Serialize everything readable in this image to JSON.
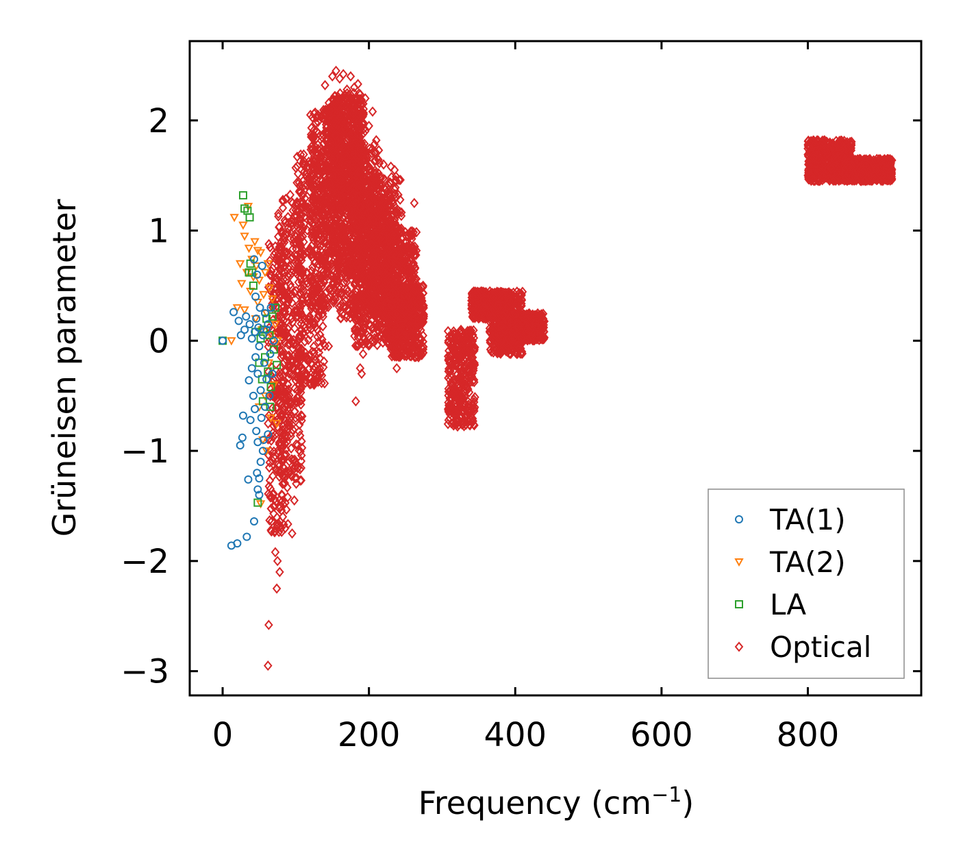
{
  "chart_data": {
    "type": "scatter",
    "title": "",
    "xlabel": "Frequency (cm",
    "xlabel_superscript": "−1",
    "xlabel_suffix": ")",
    "ylabel": "Grüneisen parameter",
    "xlim": [
      -45,
      955
    ],
    "ylim": [
      -3.22,
      2.72
    ],
    "xticks": [
      0,
      200,
      400,
      600,
      800
    ],
    "xtick_labels": [
      "0",
      "200",
      "400",
      "600",
      "800"
    ],
    "yticks": [
      -3,
      -2,
      -1,
      0,
      1,
      2
    ],
    "ytick_labels": [
      "−3",
      "−2",
      "−1",
      "0",
      "1",
      "2"
    ],
    "grid": false,
    "legend_position": "lower-right",
    "series": [
      {
        "name": "TA(1)",
        "marker": "circle",
        "color": "#1f77b4",
        "points": [
          [
            0,
            0
          ],
          [
            12,
            -1.86
          ],
          [
            15,
            0.26
          ],
          [
            20,
            -1.84
          ],
          [
            22,
            0.18
          ],
          [
            24,
            -0.95
          ],
          [
            25,
            0.05
          ],
          [
            27,
            -0.88
          ],
          [
            28,
            -0.68
          ],
          [
            30,
            0.1
          ],
          [
            32,
            0.22
          ],
          [
            33,
            -1.78
          ],
          [
            35,
            -1.26
          ],
          [
            36,
            -0.36
          ],
          [
            37,
            0.15
          ],
          [
            38,
            -0.72
          ],
          [
            40,
            0.02
          ],
          [
            40,
            -0.25
          ],
          [
            42,
            -0.5
          ],
          [
            43,
            -1.64
          ],
          [
            44,
            0.08
          ],
          [
            44,
            -0.62
          ],
          [
            45,
            0.4
          ],
          [
            45,
            -0.15
          ],
          [
            46,
            -0.82
          ],
          [
            46,
            0.2
          ],
          [
            47,
            -1.2
          ],
          [
            48,
            -1.35
          ],
          [
            48,
            -0.3
          ],
          [
            49,
            0.12
          ],
          [
            50,
            -1.4
          ],
          [
            50,
            -0.05
          ],
          [
            51,
            0.3
          ],
          [
            52,
            -1.1
          ],
          [
            52,
            -0.45
          ],
          [
            53,
            -0.7
          ],
          [
            54,
            0.68
          ],
          [
            55,
            0.05
          ],
          [
            56,
            -0.9
          ],
          [
            57,
            -0.2
          ],
          [
            58,
            0.25
          ],
          [
            58,
            -0.6
          ],
          [
            60,
            0.1
          ],
          [
            60,
            -0.35
          ],
          [
            62,
            -0.85
          ],
          [
            62,
            0.15
          ],
          [
            64,
            -0.5
          ],
          [
            65,
            -0.12
          ],
          [
            66,
            0.3
          ],
          [
            68,
            -0.3
          ],
          [
            70,
            0.0
          ],
          [
            55,
            -1.0
          ],
          [
            48,
            -0.92
          ],
          [
            50,
            -1.25
          ],
          [
            47,
            0.6
          ],
          [
            43,
            0.74
          ]
        ]
      },
      {
        "name": "TA(2)",
        "marker": "triangle-down",
        "color": "#ff7f0e",
        "points": [
          [
            12,
            0.0
          ],
          [
            16,
            1.12
          ],
          [
            20,
            0.3
          ],
          [
            24,
            0.7
          ],
          [
            26,
            0.52
          ],
          [
            28,
            1.05
          ],
          [
            30,
            0.95
          ],
          [
            30,
            0.28
          ],
          [
            33,
            0.62
          ],
          [
            35,
            1.22
          ],
          [
            36,
            0.84
          ],
          [
            38,
            0.45
          ],
          [
            40,
            0.74
          ],
          [
            42,
            0.58
          ],
          [
            44,
            0.9
          ],
          [
            45,
            0.2
          ],
          [
            46,
            0.68
          ],
          [
            48,
            0.35
          ],
          [
            50,
            0.55
          ],
          [
            50,
            -0.6
          ],
          [
            52,
            0.8
          ],
          [
            52,
            -1.48
          ],
          [
            54,
            0.1
          ],
          [
            55,
            -0.9
          ],
          [
            56,
            0.42
          ],
          [
            58,
            -0.5
          ],
          [
            58,
            0.62
          ],
          [
            60,
            0.25
          ],
          [
            60,
            -1.0
          ],
          [
            62,
            0.7
          ],
          [
            63,
            -0.2
          ],
          [
            64,
            0.48
          ],
          [
            66,
            0.05
          ],
          [
            66,
            -0.7
          ],
          [
            68,
            0.38
          ],
          [
            70,
            -0.4
          ],
          [
            72,
            0.15
          ],
          [
            74,
            -0.75
          ],
          [
            75,
            0.0
          ],
          [
            48,
            0.82
          ]
        ]
      },
      {
        "name": "LA",
        "marker": "square",
        "color": "#2ca02c",
        "points": [
          [
            0,
            0
          ],
          [
            28,
            1.32
          ],
          [
            30,
            1.2
          ],
          [
            34,
            1.18
          ],
          [
            36,
            0.62
          ],
          [
            37,
            1.12
          ],
          [
            38,
            0.7
          ],
          [
            40,
            0.62
          ],
          [
            42,
            0.5
          ],
          [
            45,
            0.08
          ],
          [
            48,
            -1.47
          ],
          [
            50,
            -0.2
          ],
          [
            52,
            0.02
          ],
          [
            54,
            -0.35
          ],
          [
            56,
            0.1
          ],
          [
            58,
            -0.15
          ],
          [
            60,
            0.2
          ],
          [
            62,
            -0.28
          ],
          [
            64,
            0.05
          ],
          [
            66,
            -0.42
          ],
          [
            68,
            0.22
          ],
          [
            70,
            -0.08
          ],
          [
            72,
            0.3
          ],
          [
            74,
            -0.22
          ],
          [
            55,
            -0.55
          ],
          [
            65,
            -0.6
          ]
        ]
      },
      {
        "name": "Optical",
        "marker": "diamond",
        "color": "#d62728",
        "points": [
          [
            62,
            -2.95
          ],
          [
            63,
            -2.58
          ],
          [
            66,
            -1.72
          ],
          [
            70,
            -1.5
          ],
          [
            72,
            -1.92
          ],
          [
            74,
            -2.25
          ],
          [
            75,
            -2.0
          ],
          [
            78,
            -2.1
          ],
          [
            80,
            -1.7
          ],
          [
            82,
            -1.3
          ],
          [
            90,
            -1.2
          ],
          [
            95,
            -1.75
          ],
          [
            98,
            -1.45
          ],
          [
            100,
            1.57
          ],
          [
            105,
            -0.55
          ],
          [
            110,
            1.45
          ],
          [
            120,
            2.05
          ],
          [
            125,
            -0.4
          ],
          [
            140,
            2.32
          ],
          [
            145,
            -0.05
          ],
          [
            150,
            2.4
          ],
          [
            155,
            2.45
          ],
          [
            160,
            2.38
          ],
          [
            165,
            2.42
          ],
          [
            170,
            2.28
          ],
          [
            175,
            2.4
          ],
          [
            180,
            2.3
          ],
          [
            185,
            2.33
          ],
          [
            190,
            -0.3
          ],
          [
            182,
            -0.55
          ],
          [
            188,
            -0.25
          ],
          [
            192,
            -0.12
          ],
          [
            195,
            2.2
          ],
          [
            200,
            1.95
          ],
          [
            205,
            2.08
          ],
          [
            210,
            1.82
          ],
          [
            220,
            1.6
          ],
          [
            230,
            1.58
          ],
          [
            235,
            1.55
          ],
          [
            238,
            -0.25
          ],
          [
            245,
            0.8
          ],
          [
            255,
            0.5
          ],
          [
            262,
            1.25
          ],
          [
            265,
            -0.05
          ],
          [
            270,
            0.15
          ],
          [
            275,
            0.22
          ]
        ],
        "clusters": [
          {
            "x_range": [
              62,
              90
            ],
            "y_range": [
              -1.75,
              0.9
            ]
          },
          {
            "x_range": [
              75,
              110
            ],
            "y_range": [
              -1.3,
              1.35
            ]
          },
          {
            "x_range": [
              100,
              140
            ],
            "y_range": [
              -0.4,
              1.7
            ]
          },
          {
            "x_range": [
              120,
              160
            ],
            "y_range": [
              0.3,
              2.1
            ]
          },
          {
            "x_range": [
              140,
              195
            ],
            "y_range": [
              0.6,
              2.2
            ]
          },
          {
            "x_range": [
              150,
              190
            ],
            "y_range": [
              1.2,
              2.25
            ]
          },
          {
            "x_range": [
              160,
              215
            ],
            "y_range": [
              0.2,
              1.8
            ]
          },
          {
            "x_range": [
              180,
              230
            ],
            "y_range": [
              -0.05,
              1.25
            ]
          },
          {
            "x_range": [
              200,
              245
            ],
            "y_range": [
              0.2,
              1.5
            ]
          },
          {
            "x_range": [
              220,
              265
            ],
            "y_range": [
              0.0,
              1.0
            ]
          },
          {
            "x_range": [
              230,
              275
            ],
            "y_range": [
              -0.15,
              0.5
            ]
          },
          {
            "x_range": [
              308,
              345
            ],
            "y_range": [
              -0.78,
              0.1
            ]
          },
          {
            "x_range": [
              340,
              395
            ],
            "y_range": [
              0.2,
              0.45
            ]
          },
          {
            "x_range": [
              365,
              410
            ],
            "y_range": [
              -0.12,
              0.45
            ]
          },
          {
            "x_range": [
              395,
              440
            ],
            "y_range": [
              0.0,
              0.25
            ]
          },
          {
            "x_range": [
              800,
              860
            ],
            "y_range": [
              1.45,
              1.82
            ]
          },
          {
            "x_range": [
              850,
              915
            ],
            "y_range": [
              1.45,
              1.65
            ]
          }
        ]
      }
    ]
  }
}
